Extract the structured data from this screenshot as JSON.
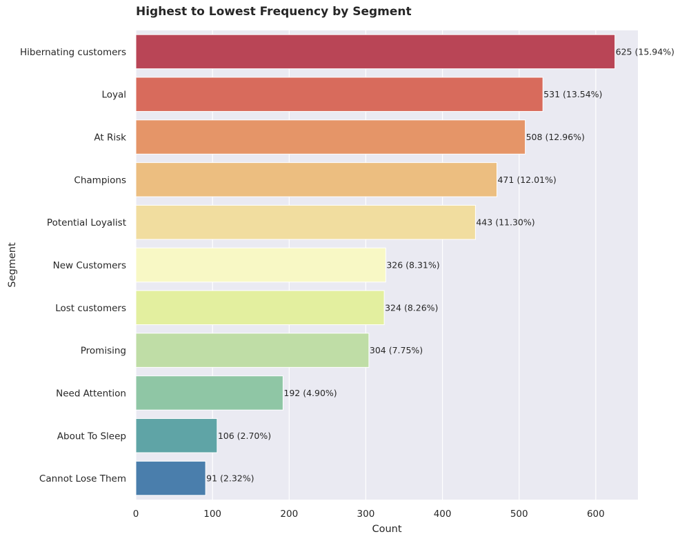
{
  "chart_data": {
    "type": "bar",
    "orientation": "horizontal",
    "title": "Highest to Lowest Frequency by Segment",
    "xlabel": "Count",
    "ylabel": "Segment",
    "xlim": [
      0,
      655
    ],
    "xticks": [
      0,
      100,
      200,
      300,
      400,
      500,
      600
    ],
    "grid": true,
    "categories": [
      "Hibernating customers",
      "Loyal",
      "At Risk",
      "Champions",
      "Potential Loyalist",
      "New Customers",
      "Lost customers",
      "Promising",
      "Need Attention",
      "About To Sleep",
      "Cannot Lose Them"
    ],
    "values": [
      625,
      531,
      508,
      471,
      443,
      326,
      324,
      304,
      192,
      106,
      91
    ],
    "data_labels": [
      "625 (15.94%)",
      "531 (13.54%)",
      "508 (12.96%)",
      "471 (12.01%)",
      "443 (11.30%)",
      "326 (8.31%)",
      "324 (8.26%)",
      "304 (7.75%)",
      "192 (4.90%)",
      "106 (2.70%)",
      "91 (2.32%)"
    ],
    "colors": [
      "#b94556",
      "#d86b5c",
      "#e59568",
      "#ecbe80",
      "#f1dd9f",
      "#f8f8c5",
      "#e3ef9f",
      "#bfdda6",
      "#8fc6a5",
      "#5fa4a6",
      "#4a7eac"
    ]
  }
}
